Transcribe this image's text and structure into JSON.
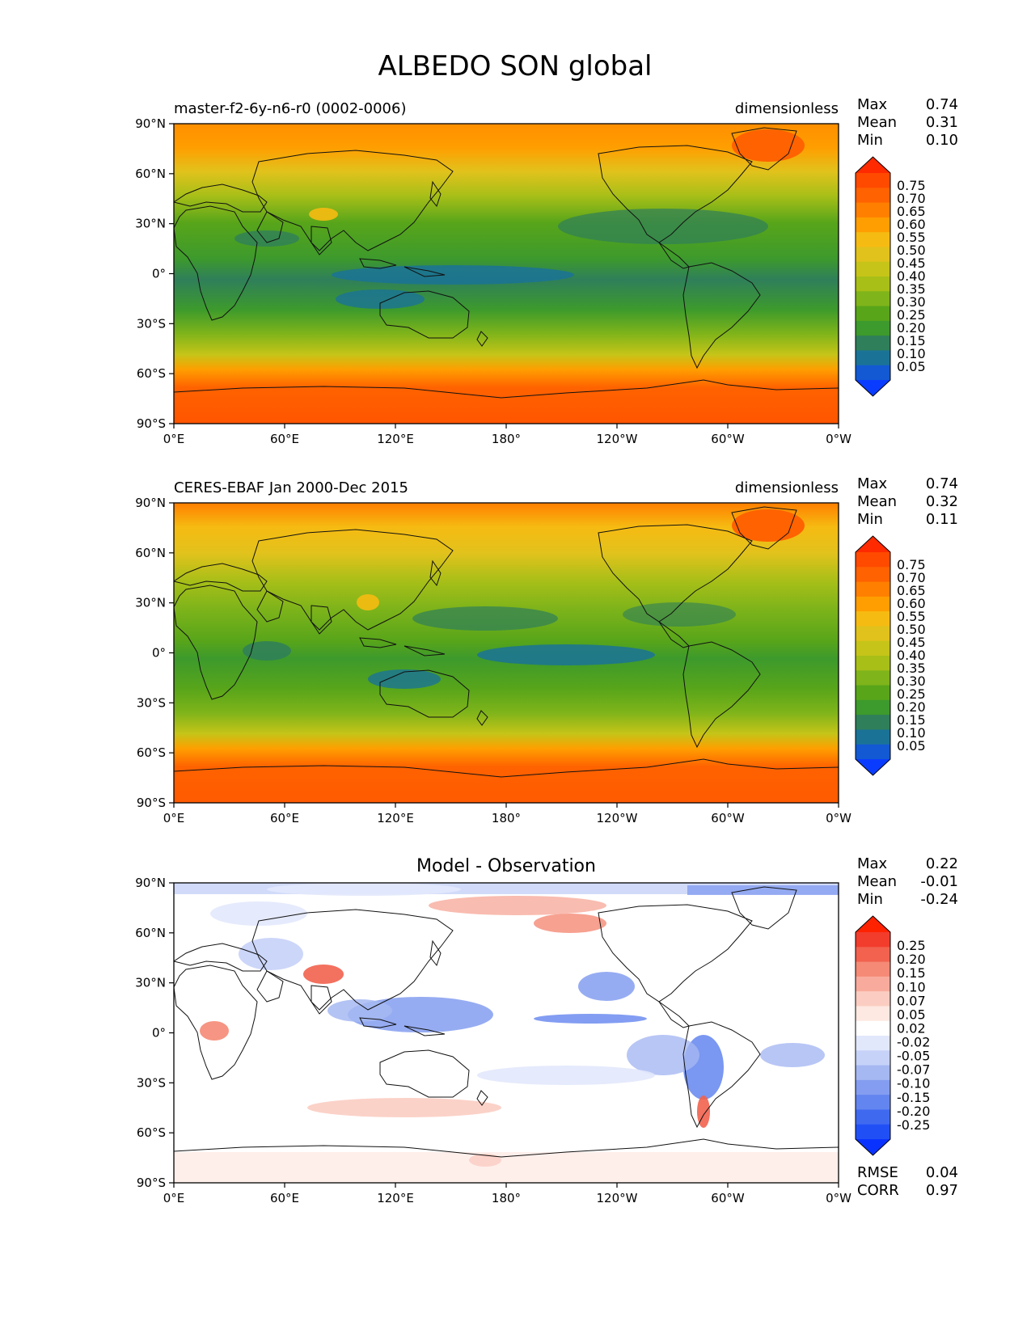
{
  "figure": {
    "title": "ALBEDO SON global"
  },
  "axes": {
    "lat_ticks": [
      "90°N",
      "60°N",
      "30°N",
      "0°",
      "30°S",
      "60°S",
      "90°S"
    ],
    "lon_ticks": [
      "0°E",
      "60°E",
      "120°E",
      "180°",
      "120°W",
      "60°W",
      "0°W"
    ]
  },
  "panels": [
    {
      "id": "model",
      "title_left": "master-f2-6y-n6-r0 (0002-0006)",
      "title_center": "",
      "units": "dimensionless",
      "stats": [
        {
          "label": "Max",
          "value": "0.74"
        },
        {
          "label": "Mean",
          "value": "0.31"
        },
        {
          "label": "Min",
          "value": "0.10"
        }
      ]
    },
    {
      "id": "obs",
      "title_left": "CERES-EBAF Jan 2000-Dec 2015",
      "title_center": "",
      "units": "dimensionless",
      "stats": [
        {
          "label": "Max",
          "value": "0.74"
        },
        {
          "label": "Mean",
          "value": "0.32"
        },
        {
          "label": "Min",
          "value": "0.11"
        }
      ]
    },
    {
      "id": "diff",
      "title_left": "",
      "title_center": "Model - Observation",
      "units": "",
      "stats": [
        {
          "label": "Max",
          "value": "0.22"
        },
        {
          "label": "Mean",
          "value": "-0.01"
        },
        {
          "label": "Min",
          "value": "-0.24"
        }
      ],
      "footer_stats": [
        {
          "label": "RMSE",
          "value": "0.04"
        },
        {
          "label": "CORR",
          "value": "0.97"
        }
      ]
    }
  ],
  "colorbars": {
    "albedo": {
      "labels": [
        "0.75",
        "0.70",
        "0.65",
        "0.60",
        "0.55",
        "0.50",
        "0.45",
        "0.40",
        "0.35",
        "0.30",
        "0.25",
        "0.20",
        "0.15",
        "0.10",
        "0.05"
      ],
      "colors": [
        "#ff2a00",
        "#ff4a00",
        "#ff6200",
        "#ff7f00",
        "#ff9e00",
        "#f6bb12",
        "#e1c21c",
        "#c6c418",
        "#a8bf18",
        "#7fb41a",
        "#58a51a",
        "#3d9a2c",
        "#2f7f5a",
        "#1a7397",
        "#1259d3",
        "#0a3cff"
      ]
    },
    "diff": {
      "labels": [
        "0.25",
        "0.20",
        "0.15",
        "0.10",
        "0.07",
        "0.05",
        "0.02",
        "-0.02",
        "-0.05",
        "-0.07",
        "-0.10",
        "-0.15",
        "-0.20",
        "-0.25"
      ],
      "colors": [
        "#ff2200",
        "#f23c2c",
        "#f2624e",
        "#f58a76",
        "#f8ab9c",
        "#fbcdc2",
        "#fde8e2",
        "#ffffff",
        "#e2e8fc",
        "#c6d2f8",
        "#a6b8f2",
        "#849df0",
        "#6385ef",
        "#3f6af0",
        "#2050f5",
        "#0a32ff"
      ]
    }
  },
  "map_field": {
    "albedo_zonal_mean": [
      {
        "lat": 90,
        "value": 0.62
      },
      {
        "lat": 75,
        "value": 0.52
      },
      {
        "lat": 60,
        "value": 0.45
      },
      {
        "lat": 45,
        "value": 0.36
      },
      {
        "lat": 30,
        "value": 0.24
      },
      {
        "lat": 15,
        "value": 0.22
      },
      {
        "lat": 0,
        "value": 0.2
      },
      {
        "lat": -15,
        "value": 0.22
      },
      {
        "lat": -30,
        "value": 0.26
      },
      {
        "lat": -45,
        "value": 0.38
      },
      {
        "lat": -60,
        "value": 0.52
      },
      {
        "lat": -75,
        "value": 0.66
      },
      {
        "lat": -90,
        "value": 0.7
      }
    ]
  }
}
